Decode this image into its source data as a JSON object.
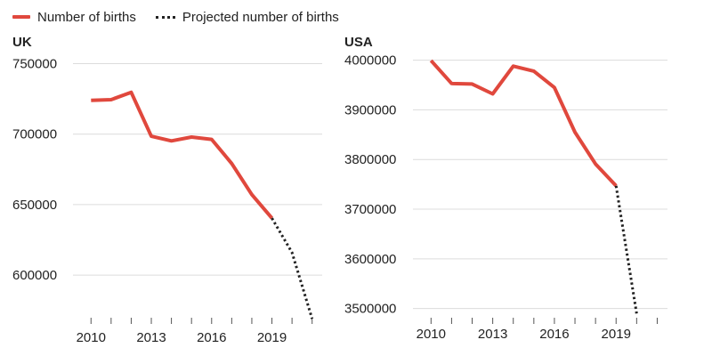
{
  "legend": {
    "actual_label": "Number of births",
    "projected_label": "Projected number of births"
  },
  "colors": {
    "actual": "#e0483d",
    "projected": "#222222",
    "grid": "#dcdcdc"
  },
  "chart_data": [
    {
      "type": "line",
      "title": "UK",
      "x_ticks": [
        "2010",
        "2013",
        "2016",
        "2019"
      ],
      "y_ticks": [
        "750000",
        "700000",
        "650000",
        "600000"
      ],
      "xlim": [
        2009.9,
        2021.5
      ],
      "ylim": [
        571000,
        756000
      ],
      "grid": "horizontal",
      "series": [
        {
          "name": "Number of births",
          "style": "solid",
          "x": [
            2010,
            2011,
            2012,
            2013,
            2014,
            2015,
            2016,
            2017,
            2018,
            2019
          ],
          "values": [
            723900,
            724400,
            729700,
            698500,
            695200,
            697900,
            696300,
            679100,
            657100,
            640400
          ]
        },
        {
          "name": "Projected number of births",
          "style": "dotted",
          "x": [
            2019,
            2020,
            2021
          ],
          "values": [
            640400,
            616000,
            569000
          ]
        }
      ]
    },
    {
      "type": "line",
      "title": "USA",
      "x_ticks": [
        "2010",
        "2013",
        "2016",
        "2019"
      ],
      "y_ticks": [
        "4000000",
        "3900000",
        "3800000",
        "3700000",
        "3600000",
        "3500000"
      ],
      "xlim": [
        2009.9,
        2021.5
      ],
      "ylim": [
        3485000,
        4010000
      ],
      "grid": "horizontal",
      "series": [
        {
          "name": "Number of births",
          "style": "solid",
          "x": [
            2010,
            2011,
            2012,
            2013,
            2014,
            2015,
            2016,
            2017,
            2018,
            2019
          ],
          "values": [
            3999000,
            3953000,
            3952000,
            3932000,
            3988000,
            3978000,
            3945000,
            3855000,
            3791000,
            3747000
          ]
        },
        {
          "name": "Projected number of births",
          "style": "dotted",
          "x": [
            2019,
            2020
          ],
          "values": [
            3747000,
            3490000
          ]
        }
      ]
    }
  ]
}
